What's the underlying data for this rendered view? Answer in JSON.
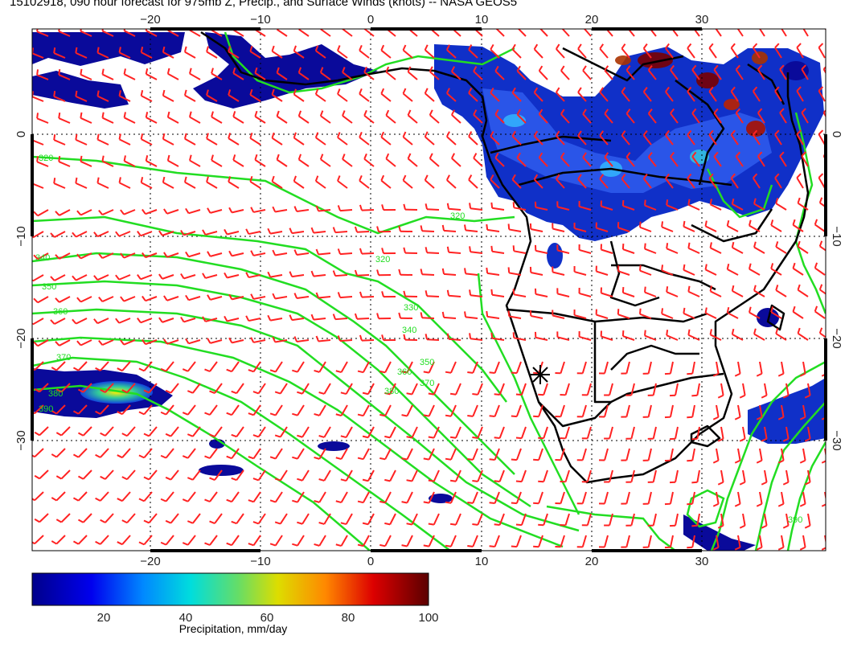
{
  "title": "15102918, 090 hour forecast for 975mb Z, Precip., and Surface Winds (knots) -- NASA GEOS5",
  "map": {
    "lon_range": [
      -30,
      41
    ],
    "lat_range": [
      10,
      -40
    ],
    "lon_ticks": [
      -20,
      -10,
      0,
      10,
      20,
      30
    ],
    "lat_ticks": [
      0,
      -10,
      -20,
      -30
    ],
    "lon_tick_labels": [
      "−20",
      "−10",
      "0",
      "10",
      "20",
      "30"
    ],
    "lat_tick_labels": [
      "0",
      "−10",
      "−20",
      "−30"
    ],
    "grid": "dotted",
    "contour_labels": [
      "320",
      "340",
      "350",
      "360",
      "370",
      "380",
      "390",
      "320",
      "330",
      "340",
      "350",
      "360",
      "370",
      "380",
      "390",
      "320"
    ],
    "colors": {
      "contour": "#22dd22",
      "wind_barbs": "#ff2222",
      "coastline": "#000000",
      "precip_low": "#00008b",
      "precip_high": "#6b0000"
    }
  },
  "colorbar": {
    "ticks": [
      "20",
      "40",
      "60",
      "80",
      "100"
    ],
    "range": [
      0,
      100
    ],
    "label": "Precipitation, mm/day"
  },
  "station_marker": {
    "symbol": "star",
    "lon": 15,
    "lat": -23
  }
}
